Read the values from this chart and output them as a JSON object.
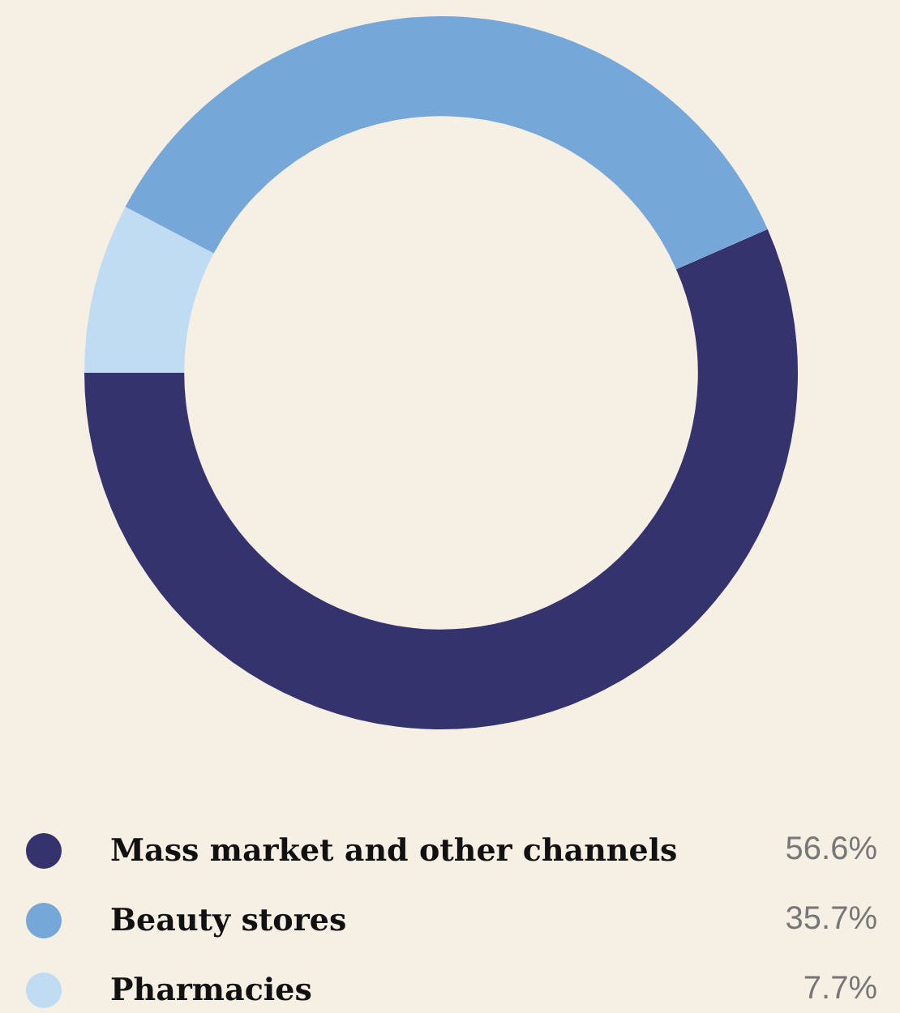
{
  "chart_data": {
    "type": "donut",
    "categories": [
      "Mass market and other channels",
      "Beauty stores",
      "Pharmacies"
    ],
    "values": [
      56.6,
      35.7,
      7.7
    ],
    "colors": [
      "#35336e",
      "#76a7d9",
      "#bfdcf3"
    ],
    "value_labels": [
      "56.6%",
      "35.7%",
      "7.7%"
    ],
    "legend": "bottom"
  }
}
